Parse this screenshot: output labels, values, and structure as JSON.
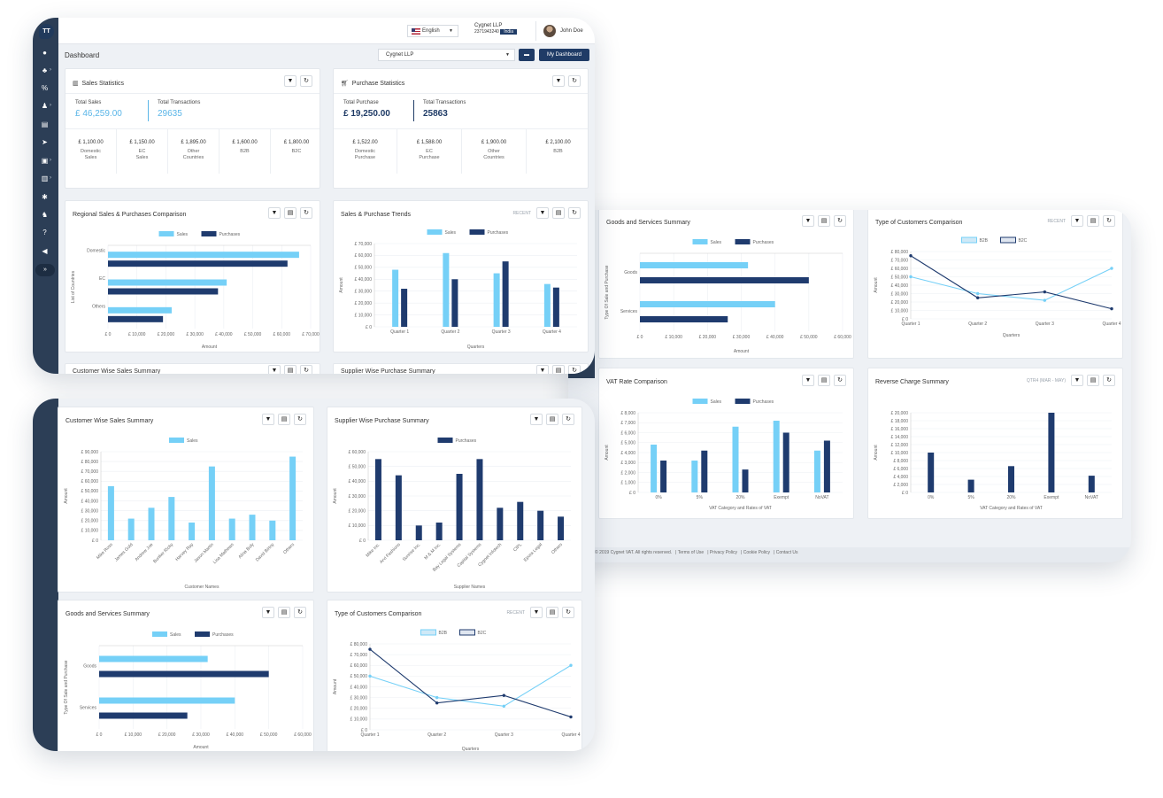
{
  "header": {
    "language": "English",
    "company_name": "Cygnet LLP",
    "company_id": "2371943240",
    "country_badge": "India",
    "user_name": "John Doe",
    "logo_text": "TT"
  },
  "dashboard": {
    "title": "Dashboard",
    "company_select": "Cygnet LLP",
    "my_dashboard_label": "My Dashboard"
  },
  "sales_stats": {
    "title": "Sales Statistics",
    "total_sales_label": "Total Sales",
    "total_sales_value": "£ 46,259.00",
    "total_tx_label": "Total Transactions",
    "total_tx_value": "29635",
    "breakdown": [
      {
        "value": "£ 1,100.00",
        "label1": "Domestic",
        "label2": "Sales"
      },
      {
        "value": "£ 1,150.00",
        "label1": "EC",
        "label2": "Sales"
      },
      {
        "value": "£ 1,895.00",
        "label1": "Other",
        "label2": "Countries"
      },
      {
        "value": "£ 1,600.00",
        "label1": "B2B",
        "label2": ""
      },
      {
        "value": "£ 1,800.00",
        "label1": "B2C",
        "label2": ""
      }
    ]
  },
  "purchase_stats": {
    "title": "Purchase Statistics",
    "total_purchase_label": "Total Purchase",
    "total_purchase_value": "£ 19,250.00",
    "total_tx_label": "Total Transactions",
    "total_tx_value": "25863",
    "breakdown": [
      {
        "value": "£ 1,522.00",
        "label1": "Domestic",
        "label2": "Purchase"
      },
      {
        "value": "£ 1,588.00",
        "label1": "EC",
        "label2": "Purchase"
      },
      {
        "value": "£ 1,900.00",
        "label1": "Other",
        "label2": "Countries"
      },
      {
        "value": "£ 2,100.00",
        "label1": "B2B",
        "label2": ""
      }
    ]
  },
  "card_titles": {
    "regional": "Regional Sales & Purchases Comparison",
    "trends": "Sales & Purchase Trends",
    "customer_wise": "Customer Wise Sales Summary",
    "supplier_wise": "Supplier Wise Purchase Summary",
    "goods": "Goods and Services Summary",
    "customers_type": "Type of Customers Comparison",
    "vat_rate": "VAT Rate Comparison",
    "reverse_charge": "Reverse Charge Summary"
  },
  "filters": {
    "recent": "RECENT",
    "qtr": "QTR4 (MAR - MAY)"
  },
  "footer": {
    "copyright": "© 2019 Cygnet VAT. All rights reserved.",
    "links": [
      "Terms of Use",
      "Privacy Policy",
      "Cookie Policy",
      "Contact Us"
    ]
  },
  "colors": {
    "sales": "#75d0f7",
    "purchases": "#1f3b6e",
    "sidebar": "#2c3e56",
    "accent": "#5bb6e8"
  },
  "sidebar_icons": [
    "dashboard-icon",
    "org-chart-icon",
    "percent-icon",
    "user-icon",
    "document-icon",
    "send-icon",
    "clipboard-icon",
    "file-icon",
    "gear-icon",
    "users-icon",
    "help-icon",
    "megaphone-icon",
    "expand-icon"
  ],
  "chart_data": [
    {
      "id": "regional",
      "type": "bar",
      "orientation": "horizontal",
      "title": "Regional Sales & Purchases Comparison",
      "categories": [
        "Domestic",
        "EC",
        "Others"
      ],
      "series": [
        {
          "name": "Sales",
          "values": [
            66000,
            41000,
            22000
          ]
        },
        {
          "name": "Purchases",
          "values": [
            62000,
            38000,
            19000
          ]
        }
      ],
      "xlabel": "Amount",
      "ylabel": "List of Countries",
      "ticks": [
        "£ 0",
        "£ 10,000",
        "£ 20,000",
        "£ 30,000",
        "£ 40,000",
        "£ 50,000",
        "£ 60,000",
        "£ 70,000"
      ],
      "xlim": [
        0,
        70000
      ]
    },
    {
      "id": "trends",
      "type": "bar",
      "title": "Sales & Purchase Trends",
      "categories": [
        "Quarter 1",
        "Quarter 2",
        "Quarter 3",
        "Quarter 4"
      ],
      "series": [
        {
          "name": "Sales",
          "values": [
            48000,
            62000,
            45000,
            36000
          ]
        },
        {
          "name": "Purchases",
          "values": [
            32000,
            40000,
            55000,
            33000
          ]
        }
      ],
      "xlabel": "Quarters",
      "ylabel": "Amount",
      "ticks": [
        "£ 0",
        "£ 10,000",
        "£ 20,000",
        "£ 30,000",
        "£ 40,000",
        "£ 50,000",
        "£ 60,000",
        "£ 70,000"
      ],
      "ylim": [
        0,
        70000
      ]
    },
    {
      "id": "customer_wise",
      "type": "bar",
      "title": "Customer Wise Sales Summary",
      "categories": [
        "Mike Ross",
        "James Gold",
        "Andrew Joe",
        "Bunker Ricky",
        "Harvey Ray",
        "Jason Martin",
        "Lisa Mathews",
        "Alina Boly",
        "David Birtny",
        "Others"
      ],
      "series": [
        {
          "name": "Sales",
          "values": [
            55000,
            22000,
            33000,
            44000,
            18000,
            75000,
            22000,
            26000,
            20000,
            85000
          ]
        }
      ],
      "xlabel": "Customer Names",
      "ylabel": "Amount",
      "ticks": [
        "£ 0",
        "£ 10,000",
        "£ 20,000",
        "£ 30,000",
        "£ 40,000",
        "£ 50,000",
        "£ 60,000",
        "£ 70,000",
        "£ 80,000",
        "£ 90,000"
      ],
      "ylim": [
        0,
        90000
      ]
    },
    {
      "id": "supplier_wise",
      "type": "bar",
      "title": "Supplier Wise Purchase Summary",
      "categories": [
        "Mike Inc.",
        "Arvi Fashions",
        "Sunrise Inc.",
        "M & M Inc.",
        "Bay Legal Systems",
        "Capital Systems",
        "Cygnet Infotech",
        "CIPL",
        "Epora Legal",
        "Others"
      ],
      "series": [
        {
          "name": "Purchases",
          "values": [
            55000,
            44000,
            10000,
            12000,
            45000,
            55000,
            22000,
            26000,
            20000,
            16000
          ]
        }
      ],
      "xlabel": "Supplier Names",
      "ylabel": "Amount",
      "ticks": [
        "£ 0",
        "£ 10,000",
        "£ 20,000",
        "£ 30,000",
        "£ 40,000",
        "£ 50,000",
        "£ 60,000"
      ],
      "ylim": [
        0,
        60000
      ]
    },
    {
      "id": "goods",
      "type": "bar",
      "orientation": "horizontal",
      "title": "Goods and Services Summary",
      "categories": [
        "Goods",
        "Services"
      ],
      "series": [
        {
          "name": "Sales",
          "values": [
            32000,
            40000
          ]
        },
        {
          "name": "Purchases",
          "values": [
            50000,
            26000
          ]
        }
      ],
      "xlabel": "Amount",
      "ylabel": "Type Of Sale and Purchase",
      "ticks": [
        "£ 0",
        "£ 10,000",
        "£ 20,000",
        "£ 30,000",
        "£ 40,000",
        "£ 50,000",
        "£ 60,000"
      ],
      "xlim": [
        0,
        60000
      ]
    },
    {
      "id": "customers_type",
      "type": "line",
      "title": "Type of Customers Comparison",
      "categories": [
        "Quarter 1",
        "Quarter 2",
        "Quarter 3",
        "Quarter 4"
      ],
      "series": [
        {
          "name": "B2B",
          "values": [
            50000,
            30000,
            22000,
            60000
          ]
        },
        {
          "name": "B2C",
          "values": [
            75000,
            25000,
            32000,
            12000
          ]
        }
      ],
      "xlabel": "Quarters",
      "ylabel": "Amount",
      "ticks": [
        "£ 0",
        "£ 10,000",
        "£ 20,000",
        "£ 30,000",
        "£ 40,000",
        "£ 50,000",
        "£ 60,000",
        "£ 70,000",
        "£ 80,000"
      ],
      "ylim": [
        0,
        80000
      ]
    },
    {
      "id": "vat_rate",
      "type": "bar",
      "title": "VAT Rate Comparison",
      "categories": [
        "0%",
        "5%",
        "20%",
        "Exempt",
        "NoVAT"
      ],
      "series": [
        {
          "name": "Sales",
          "values": [
            4800,
            3200,
            6600,
            7200,
            4200
          ]
        },
        {
          "name": "Purchases",
          "values": [
            3200,
            4200,
            2300,
            6000,
            5200
          ]
        }
      ],
      "xlabel": "VAT Category and Rates of VAT",
      "ylabel": "Amount",
      "ticks": [
        "£ 0",
        "£ 1,000",
        "£ 2,000",
        "£ 3,000",
        "£ 4,000",
        "£ 5,000",
        "£ 6,000",
        "£ 7,000",
        "£ 8,000"
      ],
      "ylim": [
        0,
        8000
      ]
    },
    {
      "id": "reverse_charge",
      "type": "bar",
      "title": "Reverse Charge Summary",
      "categories": [
        "0%",
        "5%",
        "20%",
        "Exempt",
        "NoVAT"
      ],
      "series": [
        {
          "name": "Purchases",
          "values": [
            10000,
            3200,
            6600,
            20000,
            4200
          ]
        }
      ],
      "xlabel": "VAT Category and Rates of VAT",
      "ylabel": "Amount",
      "ticks": [
        "£ 0",
        "£ 2,000",
        "£ 4,000",
        "£ 6,000",
        "£ 8,000",
        "£ 10,000",
        "£ 12,000",
        "£ 14,000",
        "£ 16,000",
        "£ 18,000",
        "£ 20,000"
      ],
      "ylim": [
        0,
        20000
      ]
    }
  ]
}
